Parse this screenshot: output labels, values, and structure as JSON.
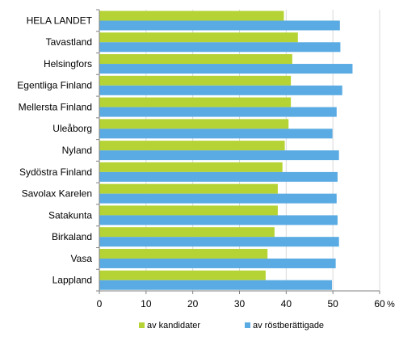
{
  "chart_data": {
    "type": "bar",
    "orientation": "horizontal",
    "categories": [
      "HELA LANDET",
      "Tavastland",
      "Helsingfors",
      "Egentliga Finland",
      "Mellersta Finland",
      "Uleåborg",
      "Nyland",
      "Sydöstra Finland",
      "Savolax Karelen",
      "Satakunta",
      "Birkaland",
      "Vasa",
      "Lappland"
    ],
    "series": [
      {
        "name": "av kandidater",
        "color": "#b5d334",
        "values": [
          39.5,
          42.5,
          41.3,
          41.0,
          41.0,
          40.5,
          39.7,
          39.2,
          38.2,
          38.2,
          37.5,
          36.0,
          35.6
        ]
      },
      {
        "name": "av röstberättigade",
        "color": "#5aabe3",
        "values": [
          51.5,
          51.6,
          54.2,
          52.0,
          50.8,
          49.9,
          51.3,
          51.0,
          50.8,
          51.0,
          51.3,
          50.6,
          49.8
        ]
      }
    ],
    "xlim": [
      0,
      60
    ],
    "xticks": [
      "0",
      "10",
      "20",
      "30",
      "40",
      "50",
      "60"
    ],
    "unit": "%",
    "grid": true,
    "legend_position": "bottom"
  }
}
